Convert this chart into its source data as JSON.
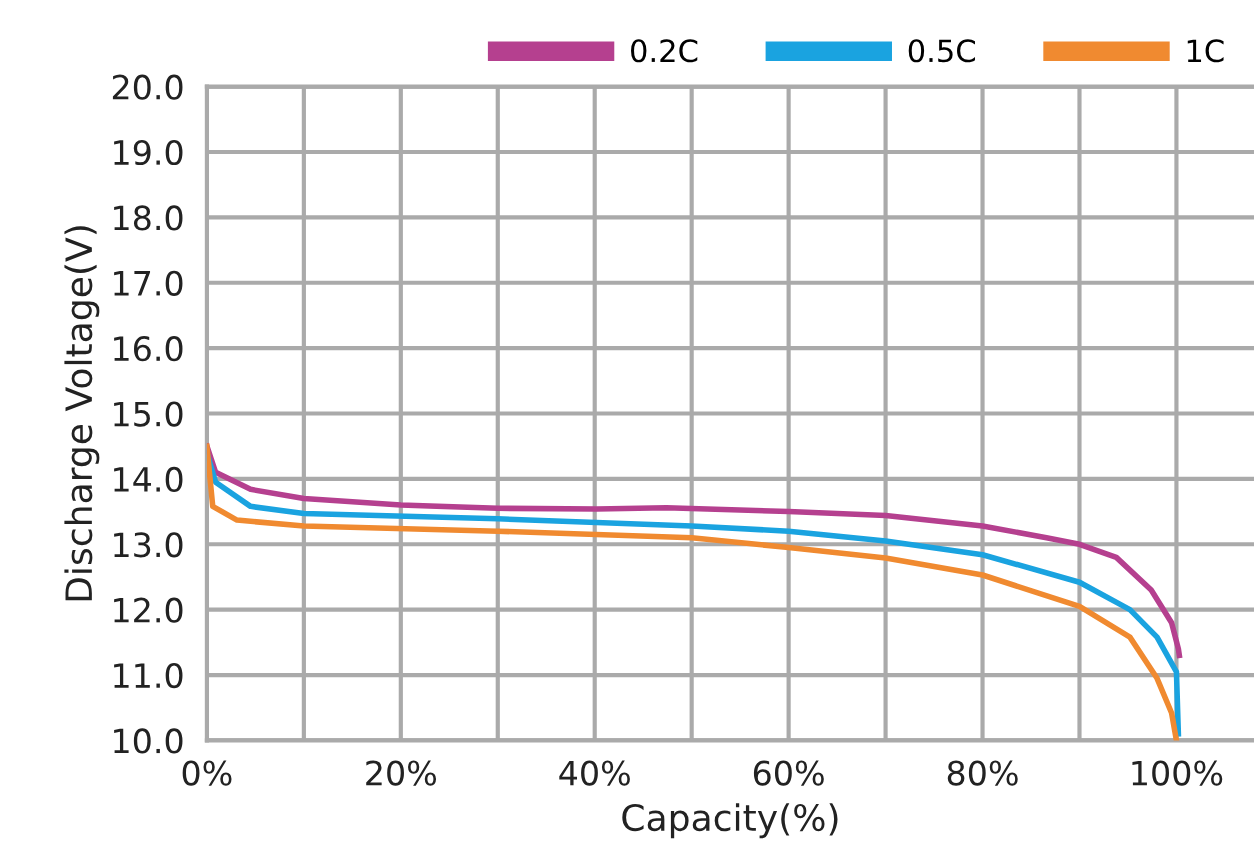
{
  "chart_data": {
    "type": "line",
    "xlabel": "Capacity(%)",
    "ylabel": "Discharge Voltage(V)",
    "xlim": [
      0,
      108
    ],
    "ylim": [
      10,
      20
    ],
    "xticks": [
      {
        "value": 0,
        "label": "0%"
      },
      {
        "value": 10,
        "label": null
      },
      {
        "value": 20,
        "label": "20%"
      },
      {
        "value": 30,
        "label": null
      },
      {
        "value": 40,
        "label": "40%"
      },
      {
        "value": 50,
        "label": null
      },
      {
        "value": 60,
        "label": "60%"
      },
      {
        "value": 70,
        "label": null
      },
      {
        "value": 80,
        "label": "80%"
      },
      {
        "value": 90,
        "label": null
      },
      {
        "value": 100,
        "label": "100%"
      }
    ],
    "yticks": [
      {
        "value": 10,
        "label": "10.0"
      },
      {
        "value": 11,
        "label": "11.0"
      },
      {
        "value": 12,
        "label": "12.0"
      },
      {
        "value": 13,
        "label": "13.0"
      },
      {
        "value": 14,
        "label": "14.0"
      },
      {
        "value": 15,
        "label": "15.0"
      },
      {
        "value": 16,
        "label": "16.0"
      },
      {
        "value": 17,
        "label": "17.0"
      },
      {
        "value": 18,
        "label": "18.0"
      },
      {
        "value": 19,
        "label": "19.0"
      },
      {
        "value": 20,
        "label": "20.0"
      }
    ],
    "grid": true,
    "legend": "top right",
    "marker": "none",
    "line_style": "solid",
    "series": [
      {
        "name": "0.2C",
        "color": "#b5408f",
        "x": [
          0,
          0.9,
          4.5,
          10,
          20,
          30,
          40.2,
          47.4,
          60,
          70,
          80,
          86.6,
          90,
          93.8,
          97.4,
          99.5,
          100.2,
          100.3
        ],
        "values": [
          14.5,
          14.1,
          13.84,
          13.7,
          13.6,
          13.55,
          13.54,
          13.56,
          13.5,
          13.44,
          13.28,
          13.1,
          13.0,
          12.8,
          12.3,
          11.8,
          11.4,
          11.3
        ]
      },
      {
        "name": "0.5C",
        "color": "#1aa3e0",
        "x": [
          0,
          0.9,
          4.5,
          10,
          30,
          50,
          60,
          70,
          80,
          90,
          95.2,
          98,
          100,
          100.2
        ],
        "values": [
          14.4,
          13.95,
          13.58,
          13.47,
          13.39,
          13.28,
          13.2,
          13.05,
          12.84,
          12.42,
          12.0,
          11.58,
          11.05,
          10.1
        ]
      },
      {
        "name": "1C",
        "color": "#f08a30",
        "x": [
          0,
          0.6,
          3.1,
          10,
          30,
          50,
          60,
          70,
          80,
          90,
          95.2,
          98,
          99.5,
          100
        ],
        "values": [
          14.5,
          13.58,
          13.37,
          13.28,
          13.2,
          13.1,
          12.95,
          12.79,
          12.53,
          12.05,
          11.58,
          10.95,
          10.42,
          10.0
        ]
      }
    ]
  }
}
